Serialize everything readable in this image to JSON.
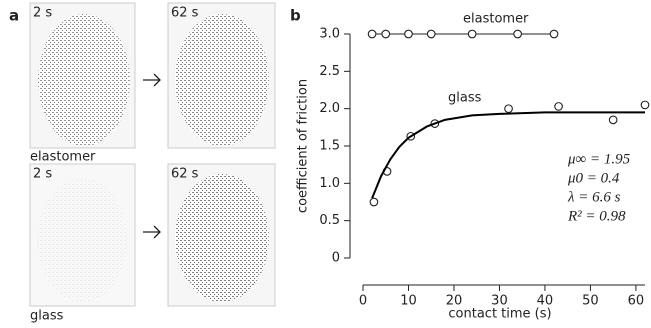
{
  "panel_a": {
    "label": "a",
    "rows": [
      {
        "times": [
          "2 s",
          "62 s"
        ],
        "label": "elastomer"
      },
      {
        "times": [
          "2 s",
          "62 s"
        ],
        "label": "glass"
      }
    ]
  },
  "chart_data": {
    "type": "scatter",
    "panel_label": "b",
    "xlabel": "contact time (s)",
    "ylabel": "coefficient of friction",
    "xlim": [
      0,
      62
    ],
    "xticks": [
      0,
      10,
      20,
      30,
      40,
      50,
      60
    ],
    "ylim": [
      0,
      3
    ],
    "yticks": [
      0,
      0.5,
      {
        "value": 1,
        "label": "1.0"
      },
      1.5,
      {
        "value": 2,
        "label": "2.0"
      },
      2.5,
      {
        "value": 3,
        "label": "3.0"
      }
    ],
    "series": [
      {
        "name": "elastomer",
        "color": "#222222",
        "line": true,
        "x": [
          2,
          5,
          10,
          15,
          24,
          34,
          42
        ],
        "values": [
          3,
          3,
          3,
          3,
          3,
          3,
          3
        ]
      },
      {
        "name": "glass",
        "color": "#222222",
        "line": false,
        "x": [
          2.4,
          5.3,
          10.5,
          15.8,
          32,
          43,
          55,
          62
        ],
        "values": [
          0.75,
          1.16,
          1.63,
          1.8,
          2.0,
          2.03,
          1.85,
          2.05
        ]
      },
      {
        "color": "#000000",
        "line": true,
        "markers": false,
        "x": [
          2,
          4,
          6,
          8,
          10,
          14,
          18,
          24,
          30,
          40,
          50,
          62
        ],
        "values": [
          0.8,
          1.1,
          1.32,
          1.49,
          1.61,
          1.76,
          1.85,
          1.91,
          1.93,
          1.95,
          1.95,
          1.95
        ]
      }
    ],
    "annotations": [
      "μ∞ = 1.95",
      "μ0 = 0.4",
      "λ = 6.6 s",
      "R² = 0.98"
    ]
  }
}
